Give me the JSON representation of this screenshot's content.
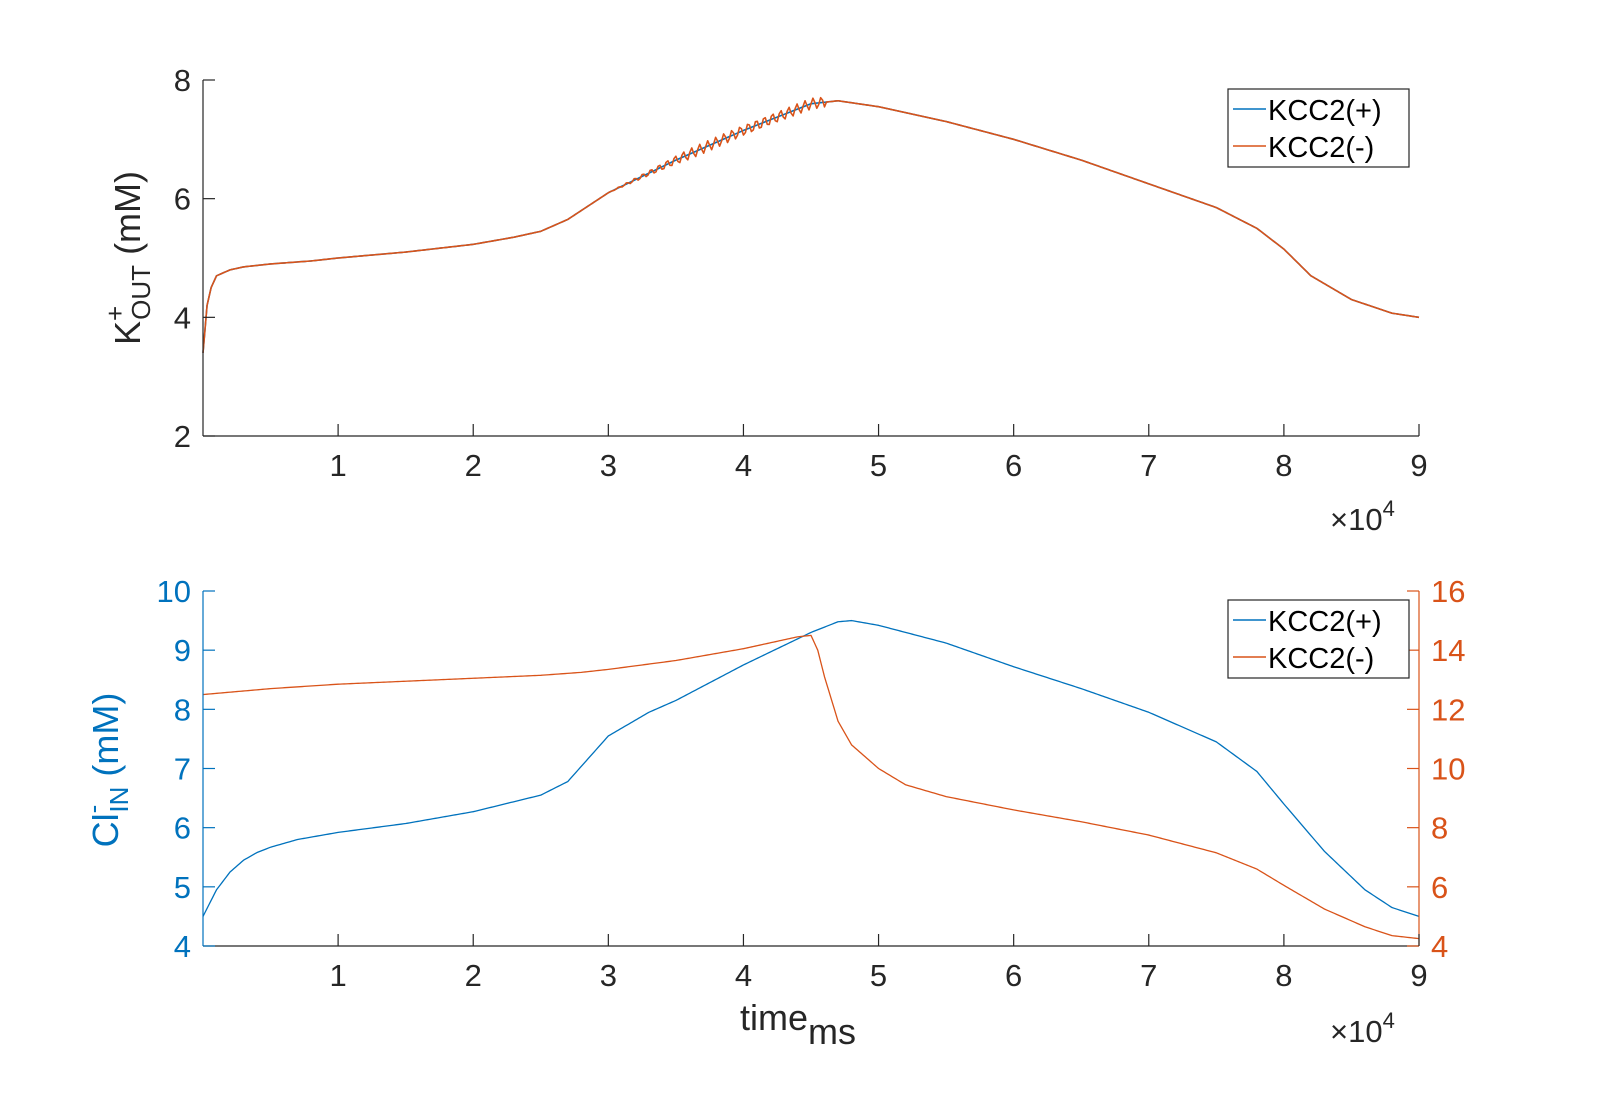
{
  "colors": {
    "blue": "#0072BD",
    "orange": "#D95319",
    "axis": "#262626"
  },
  "chart_data": [
    {
      "type": "line",
      "ylabel": {
        "base": "K",
        "sup": "+",
        "sub": "OUT",
        "unit": " (mM)"
      },
      "xlabel": "",
      "x_exponent_label": {
        "times": "×10",
        "power": "4"
      },
      "xlim": [
        0,
        90000
      ],
      "ylim": [
        2,
        8
      ],
      "xticks": [
        10000,
        20000,
        30000,
        40000,
        50000,
        60000,
        70000,
        80000,
        90000
      ],
      "xtick_labels": [
        "1",
        "2",
        "3",
        "4",
        "5",
        "6",
        "7",
        "8",
        "9"
      ],
      "yticks": [
        2,
        4,
        6,
        8
      ],
      "ytick_labels": [
        "2",
        "4",
        "6",
        "8"
      ],
      "legend": {
        "placement": "top-right",
        "entries": [
          "KCC2(+)",
          "KCC2(-)"
        ]
      },
      "series": [
        {
          "name": "KCC2(+)",
          "color": "#0072BD",
          "x": [
            0,
            300,
            600,
            1000,
            2000,
            3000,
            5000,
            8000,
            10000,
            15000,
            20000,
            23000,
            25000,
            27000,
            30000,
            35000,
            40000,
            45000,
            47000,
            50000,
            55000,
            60000,
            65000,
            70000,
            75000,
            78000,
            80000,
            82000,
            85000,
            88000,
            90000
          ],
          "y": [
            3.4,
            4.2,
            4.5,
            4.7,
            4.8,
            4.85,
            4.9,
            4.95,
            5.0,
            5.1,
            5.23,
            5.35,
            5.45,
            5.65,
            6.1,
            6.65,
            7.15,
            7.6,
            7.65,
            7.55,
            7.3,
            7.0,
            6.65,
            6.25,
            5.85,
            5.5,
            5.15,
            4.7,
            4.3,
            4.07,
            4.0
          ]
        },
        {
          "name": "KCC2(-)",
          "color": "#D95319",
          "x": [
            0,
            300,
            600,
            1000,
            2000,
            3000,
            5000,
            8000,
            10000,
            15000,
            20000,
            23000,
            25000,
            27000,
            30000,
            35000,
            40000,
            45000,
            47000,
            50000,
            55000,
            60000,
            65000,
            70000,
            75000,
            78000,
            80000,
            82000,
            85000,
            88000,
            90000
          ],
          "y": [
            3.4,
            4.2,
            4.5,
            4.7,
            4.8,
            4.85,
            4.9,
            4.95,
            5.0,
            5.1,
            5.23,
            5.35,
            5.45,
            5.65,
            6.1,
            6.65,
            7.15,
            7.6,
            7.65,
            7.55,
            7.3,
            7.0,
            6.65,
            6.25,
            5.85,
            5.5,
            5.15,
            4.7,
            4.3,
            4.07,
            4.0
          ]
        }
      ],
      "oscillation": {
        "series": "KCC2(-)",
        "x_range": [
          30000,
          46000
        ],
        "amplitude": 0.09,
        "period": 600
      }
    },
    {
      "type": "line",
      "ylabel": {
        "base": "Cl",
        "sup": "-",
        "sub": "IN",
        "unit": " (mM)"
      },
      "xlabel": {
        "main": "time",
        "sub": "ms"
      },
      "x_exponent_label": {
        "times": "×10",
        "power": "4"
      },
      "xlim": [
        0,
        90000
      ],
      "ylim": [
        4,
        10
      ],
      "ylim_right": [
        4,
        16
      ],
      "xticks": [
        10000,
        20000,
        30000,
        40000,
        50000,
        60000,
        70000,
        80000,
        90000
      ],
      "xtick_labels": [
        "1",
        "2",
        "3",
        "4",
        "5",
        "6",
        "7",
        "8",
        "9"
      ],
      "yticks": [
        4,
        5,
        6,
        7,
        8,
        9,
        10
      ],
      "ytick_labels": [
        "4",
        "5",
        "6",
        "7",
        "8",
        "9",
        "10"
      ],
      "yticks_right": [
        4,
        6,
        8,
        10,
        12,
        14,
        16
      ],
      "ytick_labels_right": [
        "4",
        "6",
        "8",
        "10",
        "12",
        "14",
        "16"
      ],
      "legend": {
        "placement": "top-right",
        "entries": [
          "KCC2(+)",
          "KCC2(-)"
        ]
      },
      "series": [
        {
          "name": "KCC2(+)",
          "color": "#0072BD",
          "axis": "left",
          "x": [
            0,
            1000,
            2000,
            3000,
            4000,
            5000,
            7000,
            10000,
            15000,
            20000,
            25000,
            27000,
            30000,
            33000,
            35000,
            40000,
            45000,
            47000,
            48000,
            50000,
            55000,
            60000,
            65000,
            70000,
            75000,
            78000,
            80000,
            83000,
            86000,
            88000,
            90000
          ],
          "y": [
            4.5,
            4.95,
            5.25,
            5.45,
            5.58,
            5.67,
            5.8,
            5.92,
            6.07,
            6.27,
            6.55,
            6.78,
            7.55,
            7.95,
            8.15,
            8.75,
            9.3,
            9.48,
            9.5,
            9.42,
            9.12,
            8.72,
            8.35,
            7.95,
            7.45,
            6.95,
            6.4,
            5.6,
            4.95,
            4.65,
            4.5
          ]
        },
        {
          "name": "KCC2(-)",
          "color": "#D95319",
          "axis": "right",
          "x": [
            0,
            5000,
            10000,
            15000,
            20000,
            25000,
            28000,
            30000,
            35000,
            40000,
            44000,
            45000,
            45500,
            46000,
            47000,
            48000,
            50000,
            52000,
            55000,
            60000,
            65000,
            70000,
            75000,
            78000,
            80000,
            83000,
            86000,
            88000,
            90000
          ],
          "y": [
            12.5,
            12.7,
            12.85,
            12.95,
            13.05,
            13.15,
            13.25,
            13.35,
            13.65,
            14.05,
            14.45,
            14.5,
            14.0,
            13.1,
            11.6,
            10.8,
            10.0,
            9.45,
            9.05,
            8.6,
            8.2,
            7.75,
            7.15,
            6.6,
            6.05,
            5.25,
            4.65,
            4.35,
            4.25
          ]
        }
      ]
    }
  ]
}
